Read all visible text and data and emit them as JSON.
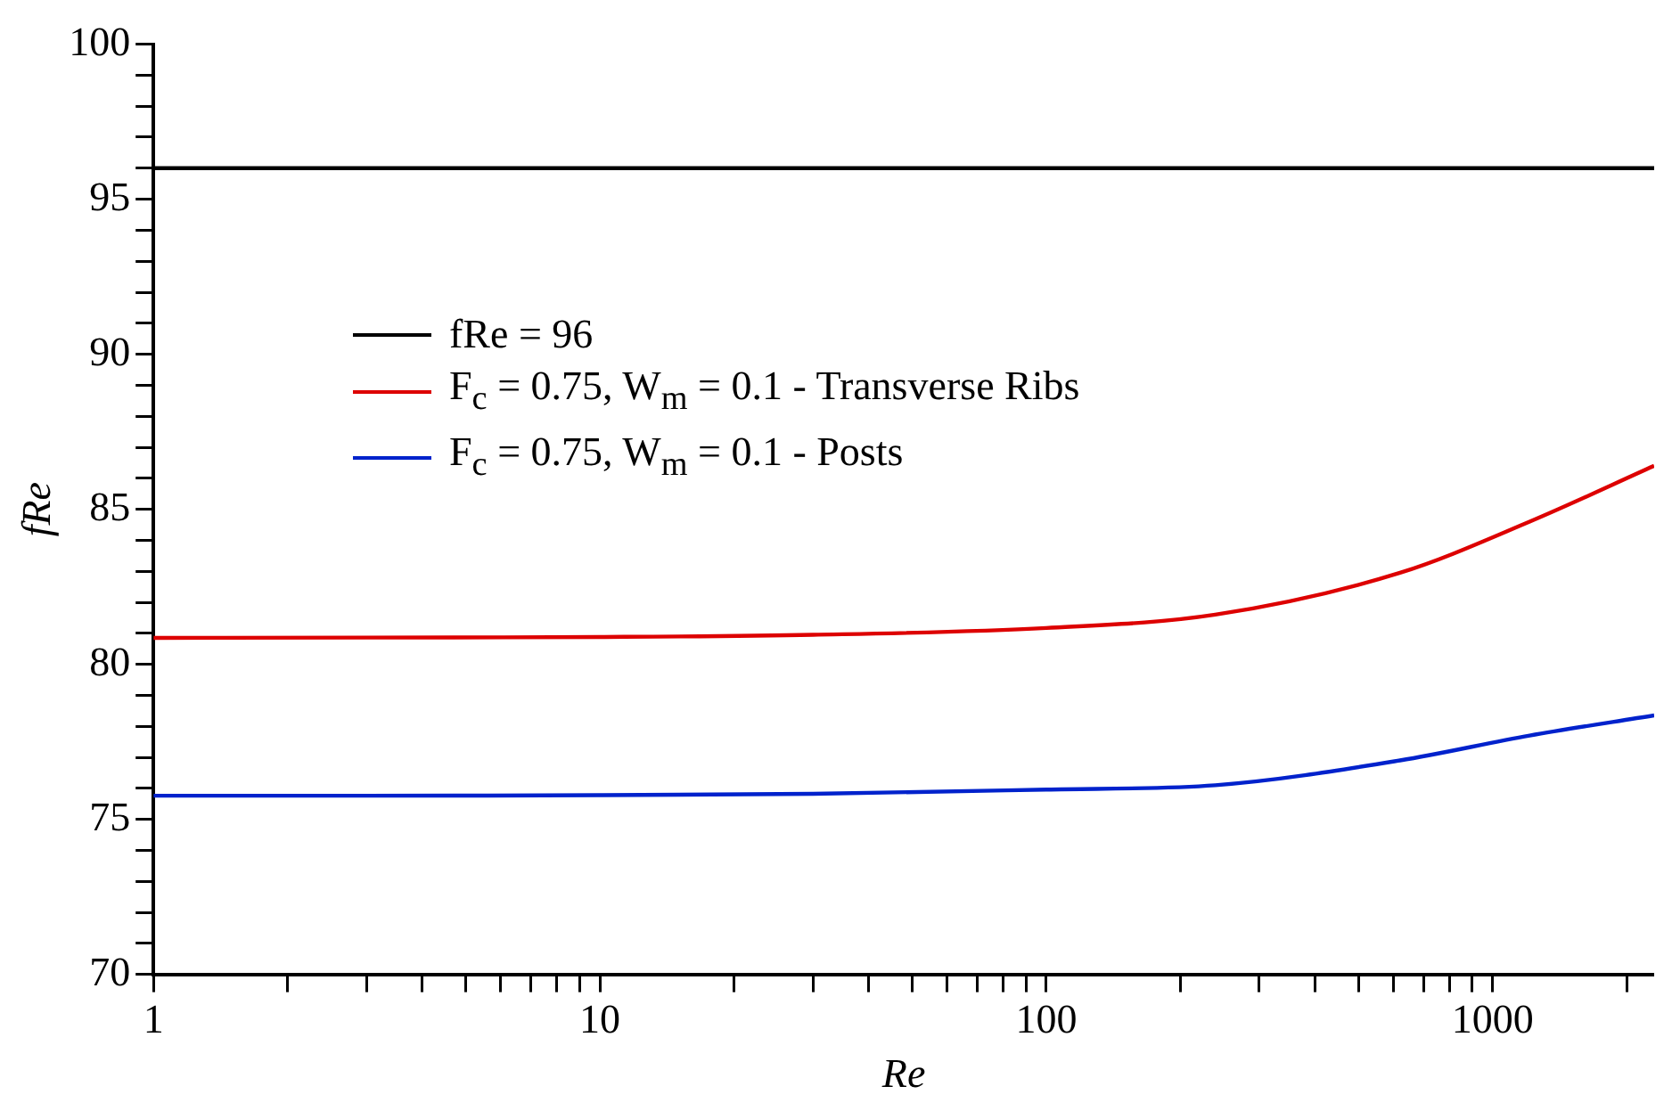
{
  "chart_data": {
    "type": "line",
    "xlabel": "Re",
    "ylabel": "fRe",
    "log": "x",
    "grid": false,
    "legend": "top left",
    "marker": "none",
    "line_style": "solid",
    "xlim": [
      1,
      2300
    ],
    "ylim": [
      70,
      100
    ],
    "xticks": [
      1,
      {
        "value": 2,
        "label": null
      },
      {
        "value": 3,
        "label": null
      },
      {
        "value": 4,
        "label": null
      },
      {
        "value": 5,
        "label": null
      },
      {
        "value": 6,
        "label": null
      },
      {
        "value": 7,
        "label": null
      },
      {
        "value": 8,
        "label": null
      },
      {
        "value": 9,
        "label": null
      },
      10,
      {
        "value": 20,
        "label": null
      },
      {
        "value": 30,
        "label": null
      },
      {
        "value": 40,
        "label": null
      },
      {
        "value": 50,
        "label": null
      },
      {
        "value": 60,
        "label": null
      },
      {
        "value": 70,
        "label": null
      },
      {
        "value": 80,
        "label": null
      },
      {
        "value": 90,
        "label": null
      },
      100,
      {
        "value": 200,
        "label": null
      },
      {
        "value": 300,
        "label": null
      },
      {
        "value": 400,
        "label": null
      },
      {
        "value": 500,
        "label": null
      },
      {
        "value": 600,
        "label": null
      },
      {
        "value": 700,
        "label": null
      },
      {
        "value": 800,
        "label": null
      },
      {
        "value": 900,
        "label": null
      },
      1000,
      {
        "value": 2000,
        "label": null
      }
    ],
    "yticks": [
      70,
      {
        "value": 71,
        "label": null
      },
      {
        "value": 72,
        "label": null
      },
      {
        "value": 73,
        "label": null
      },
      {
        "value": 74,
        "label": null
      },
      75,
      {
        "value": 76,
        "label": null
      },
      {
        "value": 77,
        "label": null
      },
      {
        "value": 78,
        "label": null
      },
      {
        "value": 79,
        "label": null
      },
      80,
      {
        "value": 81,
        "label": null
      },
      {
        "value": 82,
        "label": null
      },
      {
        "value": 83,
        "label": null
      },
      {
        "value": 84,
        "label": null
      },
      85,
      {
        "value": 86,
        "label": null
      },
      {
        "value": 87,
        "label": null
      },
      {
        "value": 88,
        "label": null
      },
      {
        "value": 89,
        "label": null
      },
      90,
      {
        "value": 91,
        "label": null
      },
      {
        "value": 92,
        "label": null
      },
      {
        "value": 93,
        "label": null
      },
      {
        "value": 94,
        "label": null
      },
      95,
      {
        "value": 96,
        "label": null
      },
      {
        "value": 97,
        "label": null
      },
      {
        "value": 98,
        "label": null
      },
      {
        "value": 99,
        "label": null
      },
      100
    ],
    "series": [
      {
        "name": "fRe = 96",
        "color": "#000000",
        "x": [
          1,
          2300
        ],
        "values": [
          96,
          96
        ]
      },
      {
        "name": "F$_{c}$ = 0.75, W$_{m}$ = 0.1 - Transverse Ribs",
        "color": "#dd0000",
        "x": [
          1,
          3,
          10,
          30,
          100,
          239,
          620,
          1210,
          2300
        ],
        "values": [
          80.85,
          80.86,
          80.88,
          80.95,
          81.17,
          81.6,
          82.95,
          84.6,
          86.4
        ]
      },
      {
        "name": "F$_{c}$ = 0.75, W$_{m}$ = 0.1 - Posts",
        "color": "#0022cc",
        "x": [
          1,
          3,
          10,
          30,
          100,
          239,
          620,
          1210,
          2300
        ],
        "values": [
          75.76,
          75.76,
          75.78,
          75.82,
          75.96,
          76.1,
          76.9,
          77.7,
          78.35
        ]
      }
    ]
  }
}
